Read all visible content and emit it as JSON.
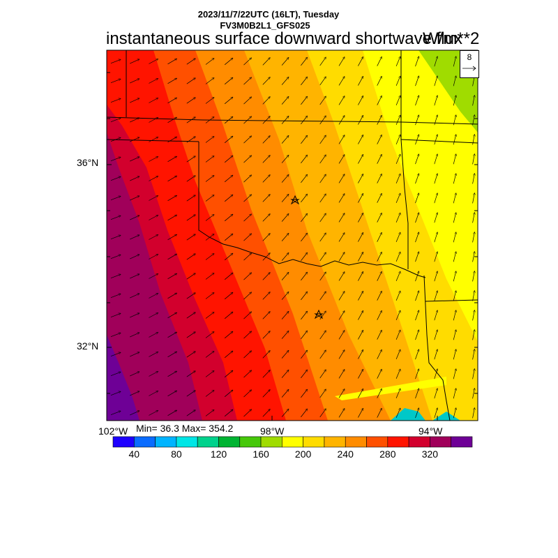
{
  "header": {
    "line1": "2023/11/7/22UTC (16LT), Tuesday",
    "line2": "FV3M0B2L1_GFS025",
    "title": "instantaneous surface downward shortwave flux",
    "units": "W/m**2"
  },
  "axes": {
    "lat_labels": [
      "36°N",
      "32°N"
    ],
    "lon_labels": [
      "102°W",
      "98°W",
      "94°W"
    ]
  },
  "stats": {
    "text": "Min= 36.3 Max= 354.2"
  },
  "reference_vector": {
    "label": "8"
  },
  "colorbar": {
    "colors": [
      "#1e00ff",
      "#0a6cff",
      "#00b4ff",
      "#00e6e6",
      "#00d28c",
      "#00b432",
      "#46c80a",
      "#a0dc00",
      "#ffff00",
      "#ffdc00",
      "#ffb400",
      "#ff8c00",
      "#ff5000",
      "#ff1400",
      "#d2002d",
      "#a0005a",
      "#6e0096"
    ],
    "labels": [
      "40",
      "80",
      "120",
      "160",
      "200",
      "240",
      "280",
      "320"
    ]
  }
}
